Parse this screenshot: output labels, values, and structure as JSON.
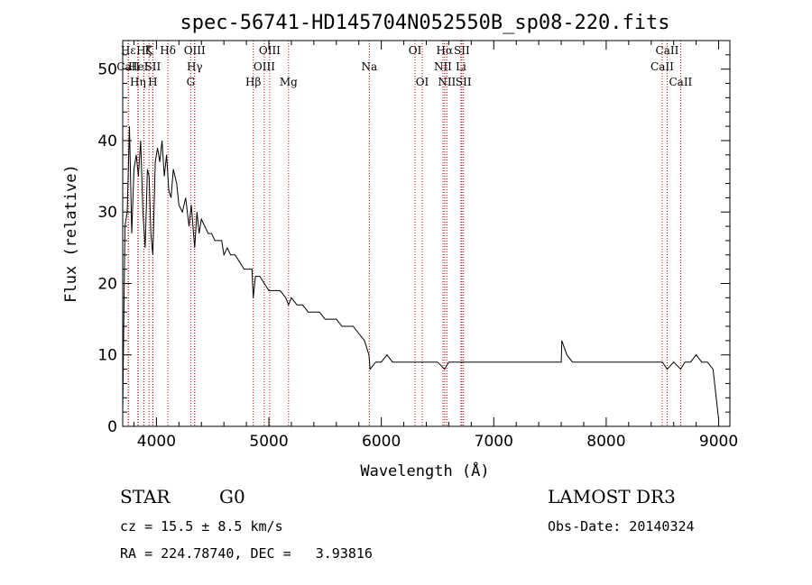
{
  "chart_data": {
    "type": "line",
    "title": "spec-56741-HD145704N052550B_sp08-220.fits",
    "xlabel": "Wavelength (Å)",
    "ylabel": "Flux (relative)",
    "xlim": [
      3700,
      9100
    ],
    "ylim": [
      0,
      54
    ],
    "xticks": [
      4000,
      5000,
      6000,
      7000,
      8000,
      9000
    ],
    "yticks": [
      0,
      10,
      20,
      30,
      40,
      50
    ],
    "series": [
      {
        "name": "spectrum",
        "x": [
          3700,
          3720,
          3740,
          3760,
          3780,
          3800,
          3820,
          3840,
          3860,
          3880,
          3900,
          3920,
          3935,
          3950,
          3968,
          3990,
          4010,
          4030,
          4050,
          4070,
          4090,
          4110,
          4130,
          4150,
          4180,
          4200,
          4230,
          4260,
          4290,
          4310,
          4330,
          4340,
          4360,
          4380,
          4400,
          4430,
          4460,
          4490,
          4520,
          4550,
          4580,
          4600,
          4630,
          4660,
          4700,
          4740,
          4780,
          4820,
          4850,
          4861,
          4880,
          4920,
          4960,
          5000,
          5050,
          5100,
          5150,
          5175,
          5200,
          5250,
          5300,
          5350,
          5400,
          5450,
          5500,
          5550,
          5600,
          5650,
          5700,
          5750,
          5800,
          5850,
          5890,
          5900,
          5950,
          6000,
          6050,
          6100,
          6150,
          6200,
          6250,
          6300,
          6350,
          6400,
          6450,
          6500,
          6563,
          6600,
          6650,
          6700,
          6750,
          6800,
          6900,
          7000,
          7100,
          7200,
          7300,
          7400,
          7500,
          7600,
          7605,
          7650,
          7700,
          7800,
          7900,
          8000,
          8100,
          8200,
          8300,
          8400,
          8500,
          8542,
          8600,
          8662,
          8700,
          8750,
          8800,
          8850,
          8900,
          8950,
          9000
        ],
        "y": [
          2,
          28,
          30,
          42,
          27,
          36,
          38,
          35,
          40,
          30,
          25,
          36,
          35,
          27,
          24,
          37,
          39,
          37,
          40,
          35,
          38,
          33,
          32,
          36,
          34,
          31,
          30,
          32,
          28,
          31,
          27,
          25,
          30,
          27,
          29,
          28,
          27,
          27,
          26,
          26,
          26,
          24,
          25,
          24,
          24,
          23,
          22,
          22,
          22,
          18,
          21,
          21,
          20,
          19,
          19,
          19,
          18,
          17,
          18,
          17,
          17,
          16,
          16,
          16,
          15,
          15,
          15,
          14,
          14,
          14,
          13,
          12,
          10,
          8,
          9,
          9,
          10,
          9,
          9,
          9,
          9,
          9,
          9,
          9,
          9,
          9,
          8,
          9,
          9,
          9,
          9,
          9,
          9,
          9,
          9,
          9,
          9,
          9,
          9,
          9,
          12,
          10,
          9,
          9,
          9,
          9,
          9,
          9,
          9,
          9,
          9,
          8,
          9,
          8,
          9,
          9,
          10,
          9,
          9,
          8,
          1
        ]
      }
    ],
    "spectral_lines": [
      {
        "label": "Hε",
        "wavelength": 3750,
        "row": 1
      },
      {
        "label": "CaII",
        "wavelength": 3750,
        "row": 2
      },
      {
        "label": "HeI",
        "wavelength": 3838,
        "row": 2
      },
      {
        "label": "Hζ",
        "wavelength": 3889,
        "row": 1
      },
      {
        "label": "Hη",
        "wavelength": 3835,
        "row": 3
      },
      {
        "label": "K",
        "wavelength": 3934,
        "row": 1
      },
      {
        "label": "SII",
        "wavelength": 3968,
        "row": 2
      },
      {
        "label": "H",
        "wavelength": 3968,
        "row": 3
      },
      {
        "label": "Hδ",
        "wavelength": 4102,
        "row": 1
      },
      {
        "label": "OIII",
        "wavelength": 4340,
        "row": 1
      },
      {
        "label": "Hγ",
        "wavelength": 4340,
        "row": 2
      },
      {
        "label": "G",
        "wavelength": 4305,
        "row": 3
      },
      {
        "label": "OIII",
        "wavelength": 5007,
        "row": 1
      },
      {
        "label": "OIII",
        "wavelength": 4959,
        "row": 2
      },
      {
        "label": "Hβ",
        "wavelength": 4861,
        "row": 3
      },
      {
        "label": "Mg",
        "wavelength": 5175,
        "row": 3
      },
      {
        "label": "Na",
        "wavelength": 5893,
        "row": 2
      },
      {
        "label": "OI",
        "wavelength": 6300,
        "row": 1
      },
      {
        "label": "OI",
        "wavelength": 6364,
        "row": 3
      },
      {
        "label": "Hα",
        "wavelength": 6563,
        "row": 1
      },
      {
        "label": "NII",
        "wavelength": 6548,
        "row": 2
      },
      {
        "label": "NII",
        "wavelength": 6583,
        "row": 3
      },
      {
        "label": "SII",
        "wavelength": 6716,
        "row": 1
      },
      {
        "label": "Li",
        "wavelength": 6708,
        "row": 2
      },
      {
        "label": "SII",
        "wavelength": 6731,
        "row": 3
      },
      {
        "label": "CaII",
        "wavelength": 8542,
        "row": 1
      },
      {
        "label": "CaII",
        "wavelength": 8498,
        "row": 2
      },
      {
        "label": "CaII",
        "wavelength": 8662,
        "row": 3
      }
    ]
  },
  "info": {
    "object_class": "STAR",
    "subclass": "G0",
    "survey": "LAMOST DR3",
    "redshift": "cz = 15.5 ± 8.5 km/s",
    "obs_date": "Obs-Date: 20140324",
    "coords": "RA = 224.78740, DEC =   3.93816"
  },
  "colors": {
    "spectrum": "#000000",
    "line_markers": "#cc0000",
    "axes": "#000000"
  }
}
